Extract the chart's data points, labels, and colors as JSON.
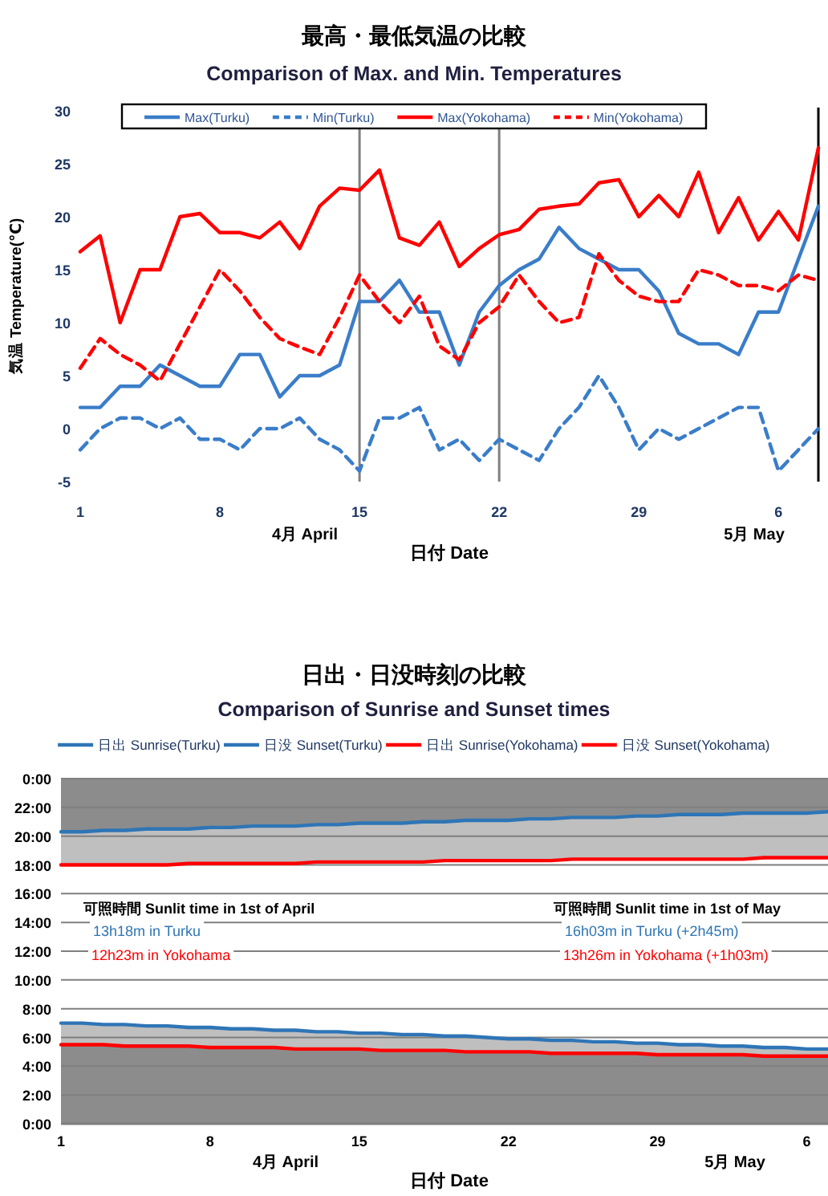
{
  "chart_data": [
    {
      "type": "line",
      "title": "最高・最低気温の比較",
      "subtitle": "Comparison of Max. and Min. Temperatures",
      "xlabel": "日付 Date",
      "ylabel": "気温 Temperature(℃)",
      "annotations": [
        "4月 April",
        "5月 May"
      ],
      "x": [
        "--04-01",
        "--04-02",
        "--04-03",
        "--04-04",
        "--04-05",
        "--04-06",
        "--04-07",
        "--04-08",
        "--04-09",
        "--04-10",
        "--04-11",
        "--04-12",
        "--04-13",
        "--04-14",
        "--04-15",
        "--04-16",
        "--04-17",
        "--04-18",
        "--04-19",
        "--04-20",
        "--04-21",
        "--04-22",
        "--04-23",
        "--04-24",
        "--04-25",
        "--04-26",
        "--04-27",
        "--04-28",
        "--04-29",
        "--04-30",
        "--05-01",
        "--05-02",
        "--05-03",
        "--05-04",
        "--05-05",
        "--05-06",
        "--05-07",
        "--05-08"
      ],
      "xlim": [
        "--04-01",
        "--05-08"
      ],
      "xticks": [
        {
          "value": "--04-01",
          "label": "1"
        },
        {
          "value": "--04-08",
          "label": "8"
        },
        {
          "value": "--04-15",
          "label": "15"
        },
        {
          "value": "--04-22",
          "label": "22"
        },
        {
          "value": "--04-29",
          "label": "29"
        },
        {
          "value": "--05-06",
          "label": "6"
        }
      ],
      "ylim": [
        -5,
        30
      ],
      "yticks": [
        -5,
        0,
        5,
        10,
        15,
        20,
        25,
        30
      ],
      "legend": "top",
      "ref_lines": [
        {
          "axis": "x",
          "value": "--04-15",
          "color": "#808080"
        },
        {
          "axis": "x",
          "value": "--04-22",
          "color": "#808080"
        }
      ],
      "series": [
        {
          "name": "Max(Turku)",
          "color": "#3a7dc9",
          "line_style": "solid",
          "values": [
            2,
            2,
            4,
            4,
            6,
            5,
            4,
            4,
            7,
            7,
            3,
            5,
            5,
            6,
            12,
            12,
            14,
            11,
            11,
            6,
            11,
            13.5,
            15,
            16,
            19,
            17,
            16,
            15,
            15,
            13,
            9,
            8,
            8,
            7,
            11,
            11,
            16,
            21
          ]
        },
        {
          "name": "Min(Turku)",
          "color": "#3a7dc9",
          "line_style": "dashed",
          "values": [
            -2,
            0,
            1,
            1,
            0,
            1,
            -1,
            -1,
            -2,
            0,
            0,
            1,
            -1,
            -2,
            -4,
            1,
            1,
            2,
            -2,
            -1,
            -3,
            -1,
            -2,
            -3,
            0,
            2,
            5,
            2,
            -2,
            0,
            -1,
            0,
            1,
            2,
            2,
            -4,
            -2,
            0
          ]
        },
        {
          "name": "Max(Yokohama)",
          "color": "#ff0000",
          "line_style": "solid",
          "values": [
            16.7,
            18.2,
            10,
            15,
            15,
            20,
            20.3,
            18.5,
            18.5,
            18,
            19.5,
            17,
            21,
            22.7,
            22.5,
            24.4,
            18,
            17.3,
            19.5,
            15.3,
            17,
            18.3,
            18.8,
            20.7,
            21,
            21.2,
            23.2,
            23.5,
            20,
            22,
            20,
            24.2,
            18.5,
            21.8,
            17.8,
            20.5,
            17.8,
            26.5
          ]
        },
        {
          "name": "Min(Yokohama)",
          "color": "#ff0000",
          "line_style": "dashed",
          "values": [
            5.7,
            8.5,
            7,
            6,
            4.5,
            8,
            11.5,
            15,
            13,
            10.5,
            8.5,
            7.7,
            7,
            10.5,
            14.5,
            12,
            10,
            12.5,
            7.8,
            6.5,
            10,
            11.5,
            14.5,
            12,
            10,
            10.5,
            16.5,
            14,
            12.5,
            12,
            12,
            15,
            14.5,
            13.5,
            13.5,
            13,
            14.5,
            14
          ]
        }
      ]
    },
    {
      "type": "line",
      "title": "日出・日没時刻の比較",
      "subtitle": "Comparison of Sunrise and Sunset times",
      "xlabel": "日付 Date",
      "annotations": [
        "可照時間 Sunlit time in 1st of April",
        "13h18m in Turku",
        "12h23m in Yokohama",
        "可照時間 Sunlit time in 1st of May",
        "16h03m in Turku (+2h45m)",
        "13h26m in Yokohama (+1h03m)",
        "4月 April",
        "5月 May"
      ],
      "x": [
        "--04-01",
        "--04-02",
        "--04-03",
        "--04-04",
        "--04-05",
        "--04-06",
        "--04-07",
        "--04-08",
        "--04-09",
        "--04-10",
        "--04-11",
        "--04-12",
        "--04-13",
        "--04-14",
        "--04-15",
        "--04-16",
        "--04-17",
        "--04-18",
        "--04-19",
        "--04-20",
        "--04-21",
        "--04-22",
        "--04-23",
        "--04-24",
        "--04-25",
        "--04-26",
        "--04-27",
        "--04-28",
        "--04-29",
        "--04-30",
        "--05-01",
        "--05-02",
        "--05-03",
        "--05-04",
        "--05-05",
        "--05-06",
        "--05-07"
      ],
      "xlim": [
        "--04-01",
        "--05-07"
      ],
      "xticks": [
        {
          "value": "--04-01",
          "label": "1"
        },
        {
          "value": "--04-08",
          "label": "8"
        },
        {
          "value": "--04-15",
          "label": "15"
        },
        {
          "value": "--04-22",
          "label": "22"
        },
        {
          "value": "--04-29",
          "label": "29"
        },
        {
          "value": "--05-06",
          "label": "6"
        }
      ],
      "ylim": [
        0,
        24
      ],
      "yticks": [
        {
          "value": 0,
          "label": "0:00"
        },
        {
          "value": 2,
          "label": "2:00"
        },
        {
          "value": 4,
          "label": "4:00"
        },
        {
          "value": 6,
          "label": "6:00"
        },
        {
          "value": 8,
          "label": "8:00"
        },
        {
          "value": 10,
          "label": "10:00"
        },
        {
          "value": 12,
          "label": "12:00"
        },
        {
          "value": 14,
          "label": "14:00"
        },
        {
          "value": 16,
          "label": "16:00"
        },
        {
          "value": 18,
          "label": "18:00"
        },
        {
          "value": 20,
          "label": "20:00"
        },
        {
          "value": 22,
          "label": "22:00"
        },
        {
          "value": 24,
          "label": "0:00"
        }
      ],
      "grid": "y",
      "legend": "top",
      "series": [
        {
          "name": "日出 Sunrise(Turku)",
          "color": "#2e75b6",
          "values": [
            7.0,
            7.0,
            6.9,
            6.9,
            6.8,
            6.8,
            6.7,
            6.7,
            6.6,
            6.6,
            6.5,
            6.5,
            6.4,
            6.4,
            6.3,
            6.3,
            6.2,
            6.2,
            6.1,
            6.1,
            6.0,
            5.9,
            5.9,
            5.8,
            5.8,
            5.7,
            5.7,
            5.6,
            5.6,
            5.5,
            5.5,
            5.4,
            5.4,
            5.3,
            5.3,
            5.2,
            5.2
          ]
        },
        {
          "name": "日没 Sunset(Turku)",
          "color": "#2e75b6",
          "values": [
            20.3,
            20.3,
            20.4,
            20.4,
            20.5,
            20.5,
            20.5,
            20.6,
            20.6,
            20.7,
            20.7,
            20.7,
            20.8,
            20.8,
            20.9,
            20.9,
            20.9,
            21.0,
            21.0,
            21.1,
            21.1,
            21.1,
            21.2,
            21.2,
            21.3,
            21.3,
            21.3,
            21.4,
            21.4,
            21.5,
            21.5,
            21.5,
            21.6,
            21.6,
            21.6,
            21.6,
            21.7
          ]
        },
        {
          "name": "日出 Sunrise(Yokohama)",
          "color": "#ff0000",
          "values": [
            5.5,
            5.5,
            5.5,
            5.4,
            5.4,
            5.4,
            5.4,
            5.3,
            5.3,
            5.3,
            5.3,
            5.2,
            5.2,
            5.2,
            5.2,
            5.1,
            5.1,
            5.1,
            5.1,
            5.0,
            5.0,
            5.0,
            5.0,
            4.9,
            4.9,
            4.9,
            4.9,
            4.9,
            4.8,
            4.8,
            4.8,
            4.8,
            4.8,
            4.7,
            4.7,
            4.7,
            4.7
          ]
        },
        {
          "name": "日没 Sunset(Yokohama)",
          "color": "#ff0000",
          "values": [
            18.0,
            18.0,
            18.0,
            18.0,
            18.0,
            18.0,
            18.1,
            18.1,
            18.1,
            18.1,
            18.1,
            18.1,
            18.2,
            18.2,
            18.2,
            18.2,
            18.2,
            18.2,
            18.3,
            18.3,
            18.3,
            18.3,
            18.3,
            18.3,
            18.4,
            18.4,
            18.4,
            18.4,
            18.4,
            18.4,
            18.4,
            18.4,
            18.4,
            18.5,
            18.5,
            18.5,
            18.5
          ]
        }
      ]
    }
  ]
}
